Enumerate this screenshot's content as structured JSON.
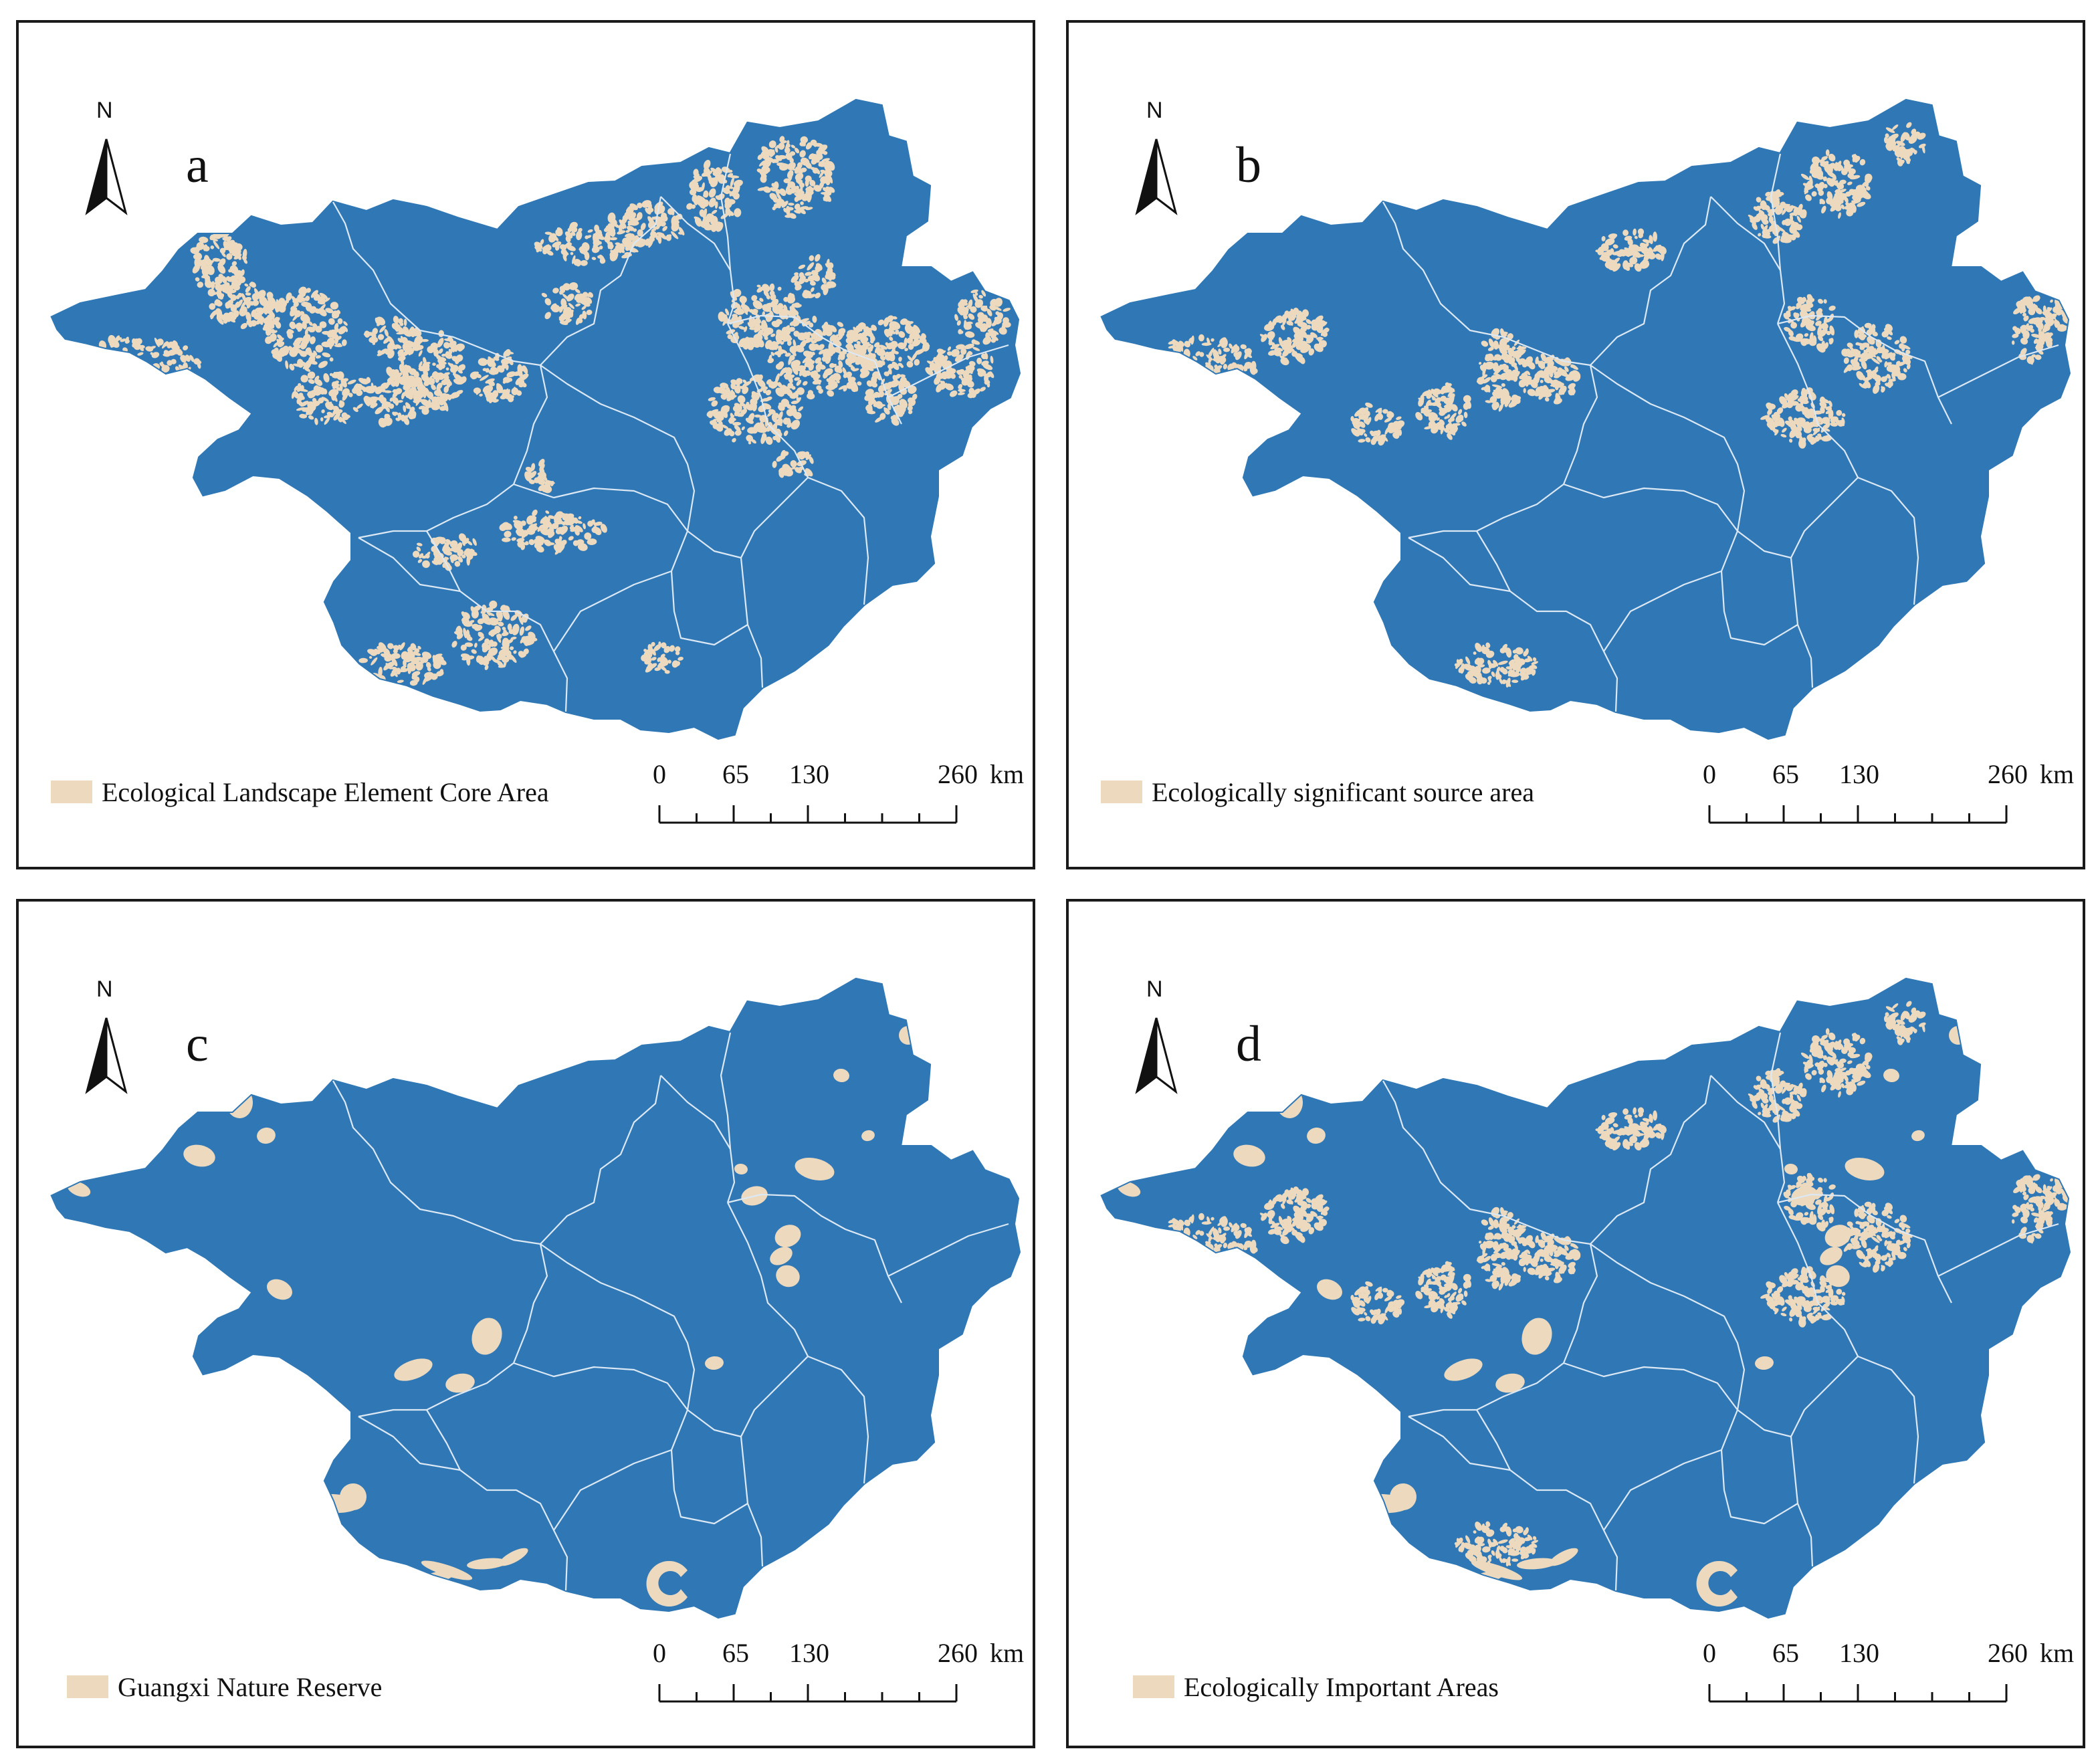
{
  "colors": {
    "land": "#2f78b5",
    "highlight": "#edd9bd",
    "boundary": "#dce8f4",
    "frame": "#1a1a1a"
  },
  "north_arrow": {
    "label": "N"
  },
  "scale_bar": {
    "ticks": [
      "0",
      "65",
      "130",
      "260"
    ],
    "unit": "km"
  },
  "panels": [
    {
      "letter": "a",
      "legend": "Ecological Landscape Element Core Area",
      "pattern": "dense-karst"
    },
    {
      "letter": "b",
      "legend": "Ecologically significant source area",
      "pattern": "clustered-karst"
    },
    {
      "letter": "c",
      "legend": "Guangxi Nature Reserve",
      "pattern": "reserve-blobs"
    },
    {
      "letter": "d",
      "legend": "Ecologically Important Areas",
      "pattern": "combined"
    }
  ]
}
